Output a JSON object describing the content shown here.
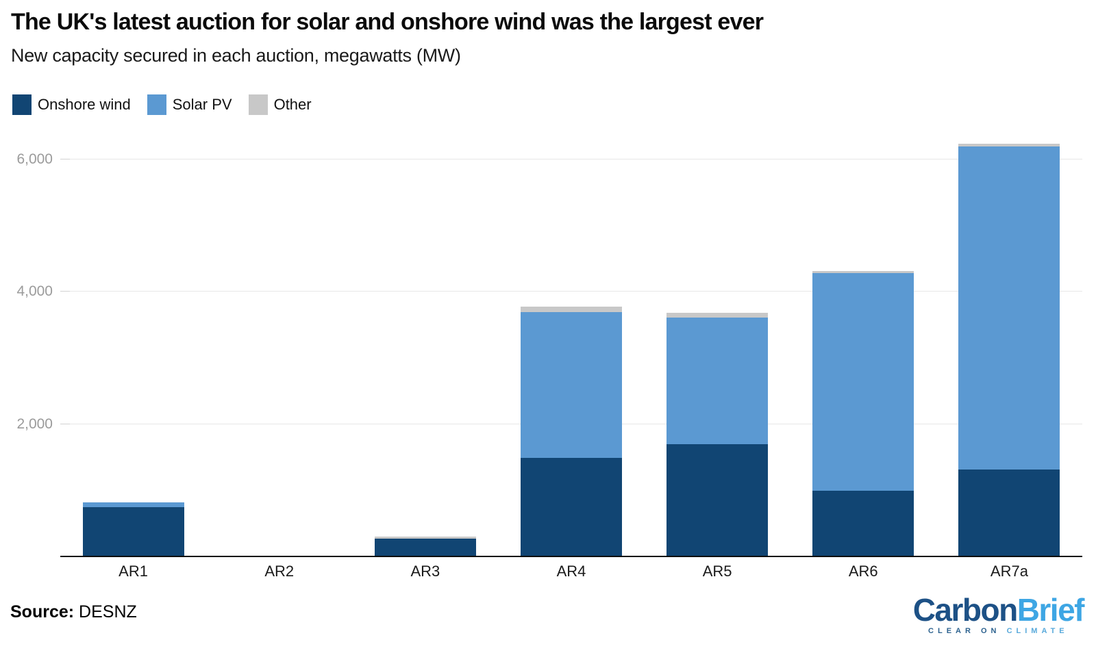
{
  "header": {
    "title": "The UK's latest auction for solar and onshore wind was the largest ever",
    "subtitle": "New capacity secured in each auction, megawatts (MW)"
  },
  "legend": {
    "items": [
      {
        "label": "Onshore wind",
        "color": "#114573"
      },
      {
        "label": "Solar PV",
        "color": "#5B99D2"
      },
      {
        "label": "Other",
        "color": "#C8C8C8"
      }
    ]
  },
  "chart_data": {
    "type": "bar",
    "stacked": true,
    "title": "The UK's latest auction for solar and onshore wind was the largest ever",
    "subtitle": "New capacity secured in each auction, megawatts (MW)",
    "unit": "MW",
    "categories": [
      "AR1",
      "AR2",
      "AR3",
      "AR4",
      "AR5",
      "AR6",
      "AR7a"
    ],
    "series": [
      {
        "name": "Onshore wind",
        "color": "#114573",
        "values": [
          750,
          0,
          265,
          1490,
          1700,
          990,
          1310
        ]
      },
      {
        "name": "Solar PV",
        "color": "#5B99D2",
        "values": [
          72,
          0,
          0,
          2205,
          1915,
          3290,
          4885
        ]
      },
      {
        "name": "Other",
        "color": "#C8C8C8",
        "values": [
          0,
          0,
          35,
          80,
          70,
          30,
          40
        ]
      }
    ],
    "totals": [
      822,
      0,
      300,
      3775,
      3685,
      4310,
      6235
    ],
    "yticks": [
      2000,
      4000,
      6000
    ],
    "ytick_labels": [
      "2,000",
      "4,000",
      "6,000"
    ],
    "ylim": [
      0,
      6500
    ],
    "xlabel": "",
    "ylabel": "",
    "grid": "horizontal",
    "legend_position": "top-left",
    "colors": {
      "background": "#ffffff",
      "axis_line": "#0d0d0d",
      "gridline": "#e7e7e7",
      "ytick_text": "#9b9b9b",
      "xtick_text": "#1a1a1a"
    }
  },
  "footer": {
    "source_label": "Source:",
    "source_value": "DESNZ",
    "logo": {
      "word1": "Carbon",
      "word2": "Brief",
      "tagline1": "CLEAR ON",
      "tagline2": "CLIMATE"
    }
  }
}
